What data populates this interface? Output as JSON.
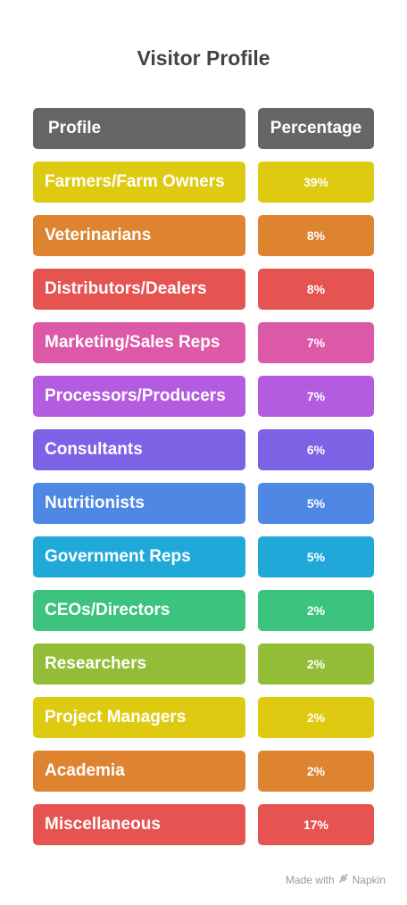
{
  "title": "Visitor Profile",
  "header": {
    "profile": "Profile",
    "percentage": "Percentage"
  },
  "footer": {
    "made_with": "Made with",
    "brand": "Napkin"
  },
  "chart_data": {
    "type": "table",
    "title": "Visitor Profile",
    "columns": [
      "Profile",
      "Percentage"
    ],
    "rows": [
      {
        "profile": "Farmers/Farm Owners",
        "percentage": "39%",
        "value": 39,
        "color": "#dfca12"
      },
      {
        "profile": "Veterinarians",
        "percentage": "8%",
        "value": 8,
        "color": "#de8431"
      },
      {
        "profile": "Distributors/Dealers",
        "percentage": "8%",
        "value": 8,
        "color": "#e55451"
      },
      {
        "profile": "Marketing/Sales Reps",
        "percentage": "7%",
        "value": 7,
        "color": "#dc59a8"
      },
      {
        "profile": "Processors/Producers",
        "percentage": "7%",
        "value": 7,
        "color": "#b35ce0"
      },
      {
        "profile": "Consultants",
        "percentage": "6%",
        "value": 6,
        "color": "#7c63e6"
      },
      {
        "profile": "Nutritionists",
        "percentage": "5%",
        "value": 5,
        "color": "#4e87e4"
      },
      {
        "profile": "Government Reps",
        "percentage": "5%",
        "value": 5,
        "color": "#20a9d8"
      },
      {
        "profile": "CEOs/Directors",
        "percentage": "2%",
        "value": 2,
        "color": "#3cc47f"
      },
      {
        "profile": "Researchers",
        "percentage": "2%",
        "value": 2,
        "color": "#93bd37"
      },
      {
        "profile": "Project Managers",
        "percentage": "2%",
        "value": 2,
        "color": "#dfca12"
      },
      {
        "profile": "Academia",
        "percentage": "2%",
        "value": 2,
        "color": "#de8431"
      },
      {
        "profile": "Miscellaneous",
        "percentage": "17%",
        "value": 17,
        "color": "#e55451"
      }
    ]
  }
}
